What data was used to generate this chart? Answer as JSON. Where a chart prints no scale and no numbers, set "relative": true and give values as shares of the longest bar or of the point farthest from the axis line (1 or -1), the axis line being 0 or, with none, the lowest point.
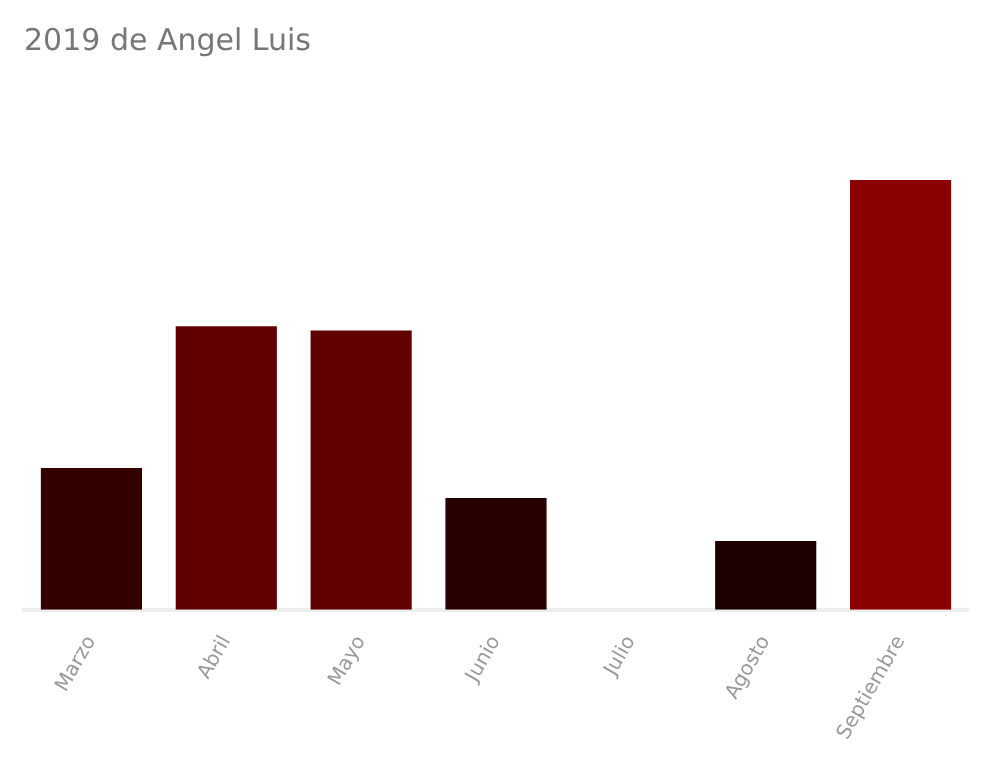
{
  "chart_data": {
    "type": "bar",
    "title": "2019 de Angel Luis",
    "categories": [
      "Marzo",
      "Abril",
      "Mayo",
      "Junio",
      "Julio",
      "Agosto",
      "Septiembre"
    ],
    "values": [
      0.33,
      0.66,
      0.65,
      0.26,
      0,
      0.16,
      1
    ],
    "colors": [
      "#330000",
      "#600000",
      "#600000",
      "#280000",
      "#400000",
      "#1c0000",
      "#8b0000"
    ],
    "relative": true
  }
}
